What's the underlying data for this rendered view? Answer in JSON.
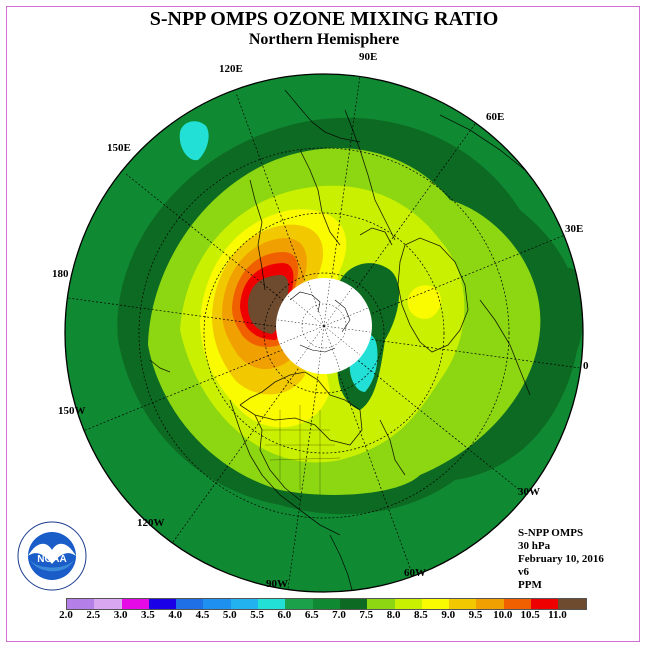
{
  "title": "S-NPP OMPS OZONE MIXING RATIO",
  "subtitle": "Northern Hemisphere",
  "longitude_labels": [
    "90E",
    "60E",
    "30E",
    "0",
    "30W",
    "60W",
    "90W",
    "120W",
    "150W",
    "180",
    "150E",
    "120E"
  ],
  "info": {
    "instrument": "S-NPP OMPS",
    "level": "30 hPa",
    "date": "February 10, 2016",
    "version": "v6",
    "units": "PPM"
  },
  "logo_text": "NOAA",
  "colorbar": {
    "labels": [
      "2.0",
      "2.5",
      "3.0",
      "3.5",
      "4.0",
      "4.5",
      "5.0",
      "5.5",
      "6.0",
      "6.5",
      "7.0",
      "7.5",
      "8.0",
      "8.5",
      "9.0",
      "9.5",
      "10.0",
      "10.5",
      "11.0"
    ],
    "colors": [
      "#b57fe8",
      "#d9a6f0",
      "#e60be6",
      "#1a00e6",
      "#1f6fe6",
      "#1e90ef",
      "#22b2ef",
      "#22e0d6",
      "#1aa14a",
      "#108a32",
      "#0d6a22",
      "#8cd612",
      "#c8f000",
      "#fafa00",
      "#f2c800",
      "#f0a000",
      "#f06000",
      "#ee0000",
      "#6e4b2e"
    ]
  },
  "map_colors": {
    "background_green": "#108a32",
    "dark_green": "#0d6a22",
    "cyan": "#22e0d6",
    "brown": "#6e4b2e"
  }
}
